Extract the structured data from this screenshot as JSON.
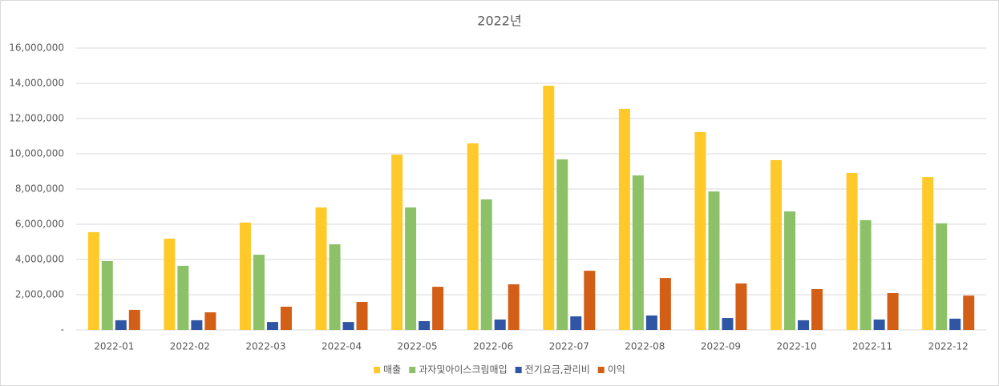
{
  "chart_data": {
    "type": "bar",
    "title": "2022년",
    "categories": [
      "2022-01",
      "2022-02",
      "2022-03",
      "2022-04",
      "2022-05",
      "2022-06",
      "2022-07",
      "2022-08",
      "2022-09",
      "2022-10",
      "2022-11",
      "2022-12"
    ],
    "series": [
      {
        "name": "매출",
        "color": "#ffc929",
        "values": [
          5550000,
          5180000,
          6090000,
          6950000,
          9950000,
          10590000,
          13860000,
          12550000,
          11230000,
          9640000,
          8910000,
          8680000
        ]
      },
      {
        "name": "과자및아이스크림매입",
        "color": "#8cc168",
        "values": [
          3910000,
          3640000,
          4270000,
          4860000,
          6950000,
          7410000,
          9680000,
          8770000,
          7860000,
          6730000,
          6230000,
          6050000
        ]
      },
      {
        "name": "전기요금,관리비",
        "color": "#2f55a4",
        "values": [
          550000,
          550000,
          450000,
          450000,
          500000,
          590000,
          770000,
          820000,
          680000,
          550000,
          590000,
          640000
        ]
      },
      {
        "name": "이익",
        "color": "#d35f17",
        "values": [
          1140000,
          1000000,
          1320000,
          1590000,
          2450000,
          2590000,
          3360000,
          2950000,
          2640000,
          2320000,
          2090000,
          1950000
        ]
      }
    ],
    "ylim": [
      0,
      16000000
    ],
    "yticks": [
      {
        "value": 0,
        "label": "-"
      },
      {
        "value": 2000000,
        "label": "2,000,000"
      },
      {
        "value": 4000000,
        "label": "4,000,000"
      },
      {
        "value": 6000000,
        "label": "6,000,000"
      },
      {
        "value": 8000000,
        "label": "8,000,000"
      },
      {
        "value": 10000000,
        "label": "10,000,000"
      },
      {
        "value": 12000000,
        "label": "12,000,000"
      },
      {
        "value": 14000000,
        "label": "14,000,000"
      },
      {
        "value": 16000000,
        "label": "16,000,000"
      }
    ],
    "grid": true,
    "legend": "bottom"
  }
}
